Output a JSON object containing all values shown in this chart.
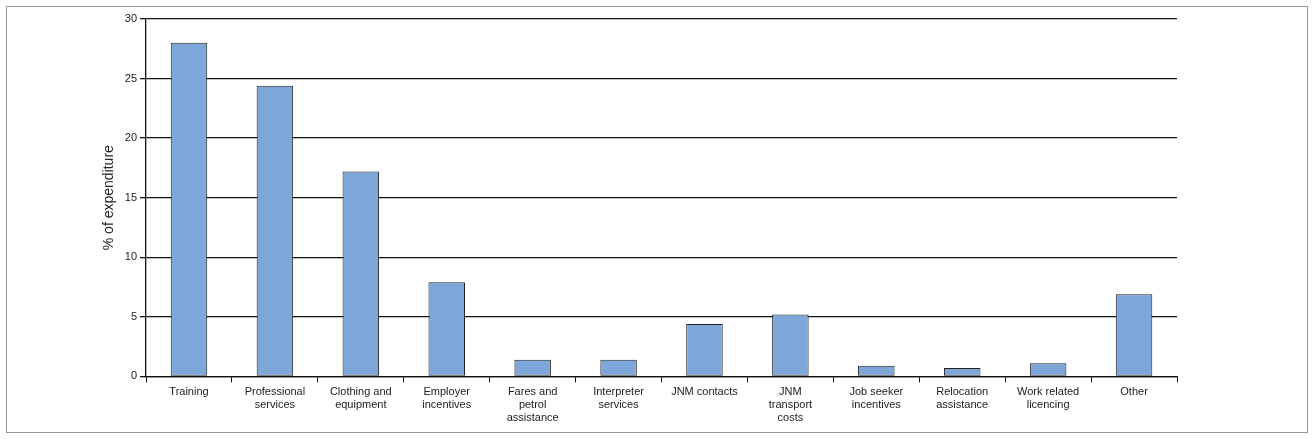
{
  "chart_data": {
    "type": "bar",
    "ylabel": "% of expenditure",
    "categories": [
      "Training",
      "Professional services",
      "Clothing and equipment",
      "Employer incentives",
      "Fares and petrol assistance",
      "Interpreter services",
      "JNM contacts",
      "JNM transport costs",
      "Job seeker incentives",
      "Relocation assistance",
      "Work related licencing",
      "Other"
    ],
    "values": [
      28,
      24.4,
      17.2,
      7.9,
      1.4,
      1.4,
      4.4,
      5.2,
      0.9,
      0.7,
      1.1,
      6.9
    ],
    "color": "#7da7d9",
    "ylim": [
      0,
      30
    ],
    "yticks": [
      0,
      5,
      10,
      15,
      20,
      25,
      30
    ],
    "grid": "y"
  }
}
